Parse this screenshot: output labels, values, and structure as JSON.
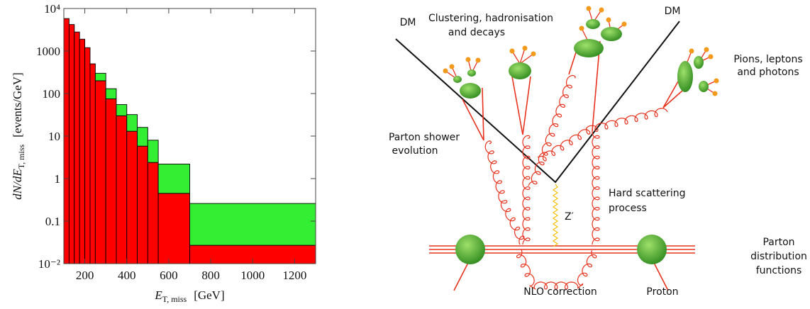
{
  "chart_data": {
    "type": "histogram",
    "stacked": true,
    "log_y": true,
    "bins": [
      100,
      125,
      150,
      175,
      200,
      225,
      250,
      300,
      350,
      400,
      450,
      500,
      550,
      700,
      1300
    ],
    "series": [
      {
        "color": "#ff0000",
        "values": [
          5800,
          4200,
          2800,
          1900,
          1200,
          500,
          200,
          75,
          30,
          13,
          5.8,
          2.4,
          0.45,
          0.027
        ]
      },
      {
        "color": "#33ee33",
        "values": [
          0,
          0,
          0,
          0,
          0,
          0,
          100,
          55,
          25,
          19,
          10.2,
          5.6,
          1.75,
          0.233
        ]
      }
    ],
    "xlim": [
      100,
      1300
    ],
    "xticks": [
      200,
      400,
      600,
      800,
      1000,
      1200
    ],
    "ylim": [
      0.01,
      10000
    ],
    "yticks": [
      {
        "value": 0.01,
        "label": "10⁻²"
      },
      0.1,
      1,
      10,
      100,
      1000,
      {
        "value": 10000,
        "label": "10⁴"
      }
    ],
    "xlabel": {
      "main": "E",
      "sub": "T, miss",
      "unit": "[GeV]"
    },
    "ylabel": {
      "main": "dN/dE",
      "sub": "T, miss",
      "unit": "[events/GeV]"
    }
  },
  "diagram": {
    "dm_left": "DM",
    "dm_right": "DM",
    "clustering": [
      "Clustering, hadronisation",
      "and decays"
    ],
    "pions": [
      "Pions, leptons",
      "and photons"
    ],
    "shower": [
      "Parton shower",
      "evolution"
    ],
    "hard": [
      "Hard scattering",
      "process"
    ],
    "zprime": "Z′",
    "pdf": [
      "Parton",
      "distribution",
      "functions"
    ],
    "nlo": "NLO correction",
    "proton": "Proton"
  }
}
